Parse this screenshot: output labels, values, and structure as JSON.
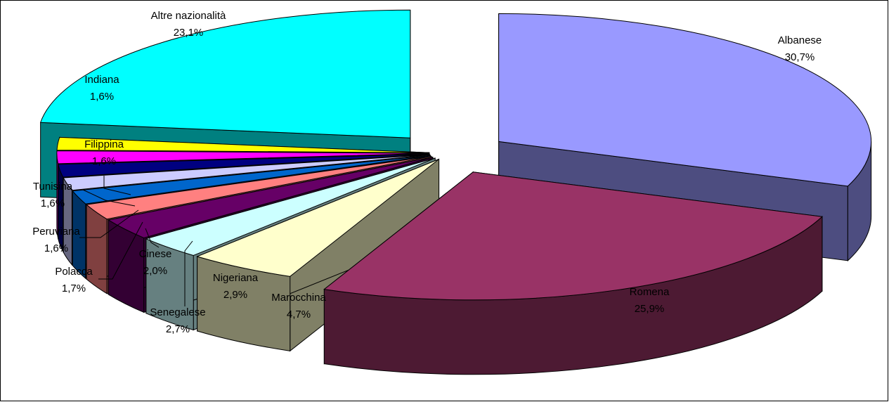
{
  "chart_data": {
    "type": "pie",
    "style": "3d-exploded",
    "title": "",
    "legend": "none",
    "slices": [
      {
        "name": "Albanese",
        "value": 30.7,
        "label": "30,7%",
        "top_color": "#9999FF",
        "side_color": "#4D4D80"
      },
      {
        "name": "Romena",
        "value": 25.9,
        "label": "25,9%",
        "top_color": "#993366",
        "side_color": "#4D1A33"
      },
      {
        "name": "Marocchina",
        "value": 4.7,
        "label": "4,7%",
        "top_color": "#FFFFCC",
        "side_color": "#808066"
      },
      {
        "name": "Nigeriana",
        "value": 2.9,
        "label": "2,9%",
        "top_color": "#CCFFFF",
        "side_color": "#668080"
      },
      {
        "name": "Senegalese",
        "value": 2.7,
        "label": "2,7%",
        "top_color": "#660066",
        "side_color": "#330033"
      },
      {
        "name": "Cinese",
        "value": 2.0,
        "label": "2,0%",
        "top_color": "#FF8080",
        "side_color": "#804040"
      },
      {
        "name": "Polacca",
        "value": 1.7,
        "label": "1,7%",
        "top_color": "#0066CC",
        "side_color": "#003366"
      },
      {
        "name": "Peruviana",
        "value": 1.6,
        "label": "1,6%",
        "top_color": "#CCCCFF",
        "side_color": "#666680"
      },
      {
        "name": "Tunisina",
        "value": 1.6,
        "label": "1,6%",
        "top_color": "#000080",
        "side_color": "#000040"
      },
      {
        "name": "Filippina",
        "value": 1.6,
        "label": "1,6%",
        "top_color": "#FF00FF",
        "side_color": "#800080"
      },
      {
        "name": "Indiana",
        "value": 1.6,
        "label": "1,6%",
        "top_color": "#FFFF00",
        "side_color": "#808000"
      },
      {
        "name": "Altre nazionalità",
        "value": 23.1,
        "label": "23,1%",
        "top_color": "#00FFFF",
        "side_color": "#008080"
      }
    ]
  }
}
